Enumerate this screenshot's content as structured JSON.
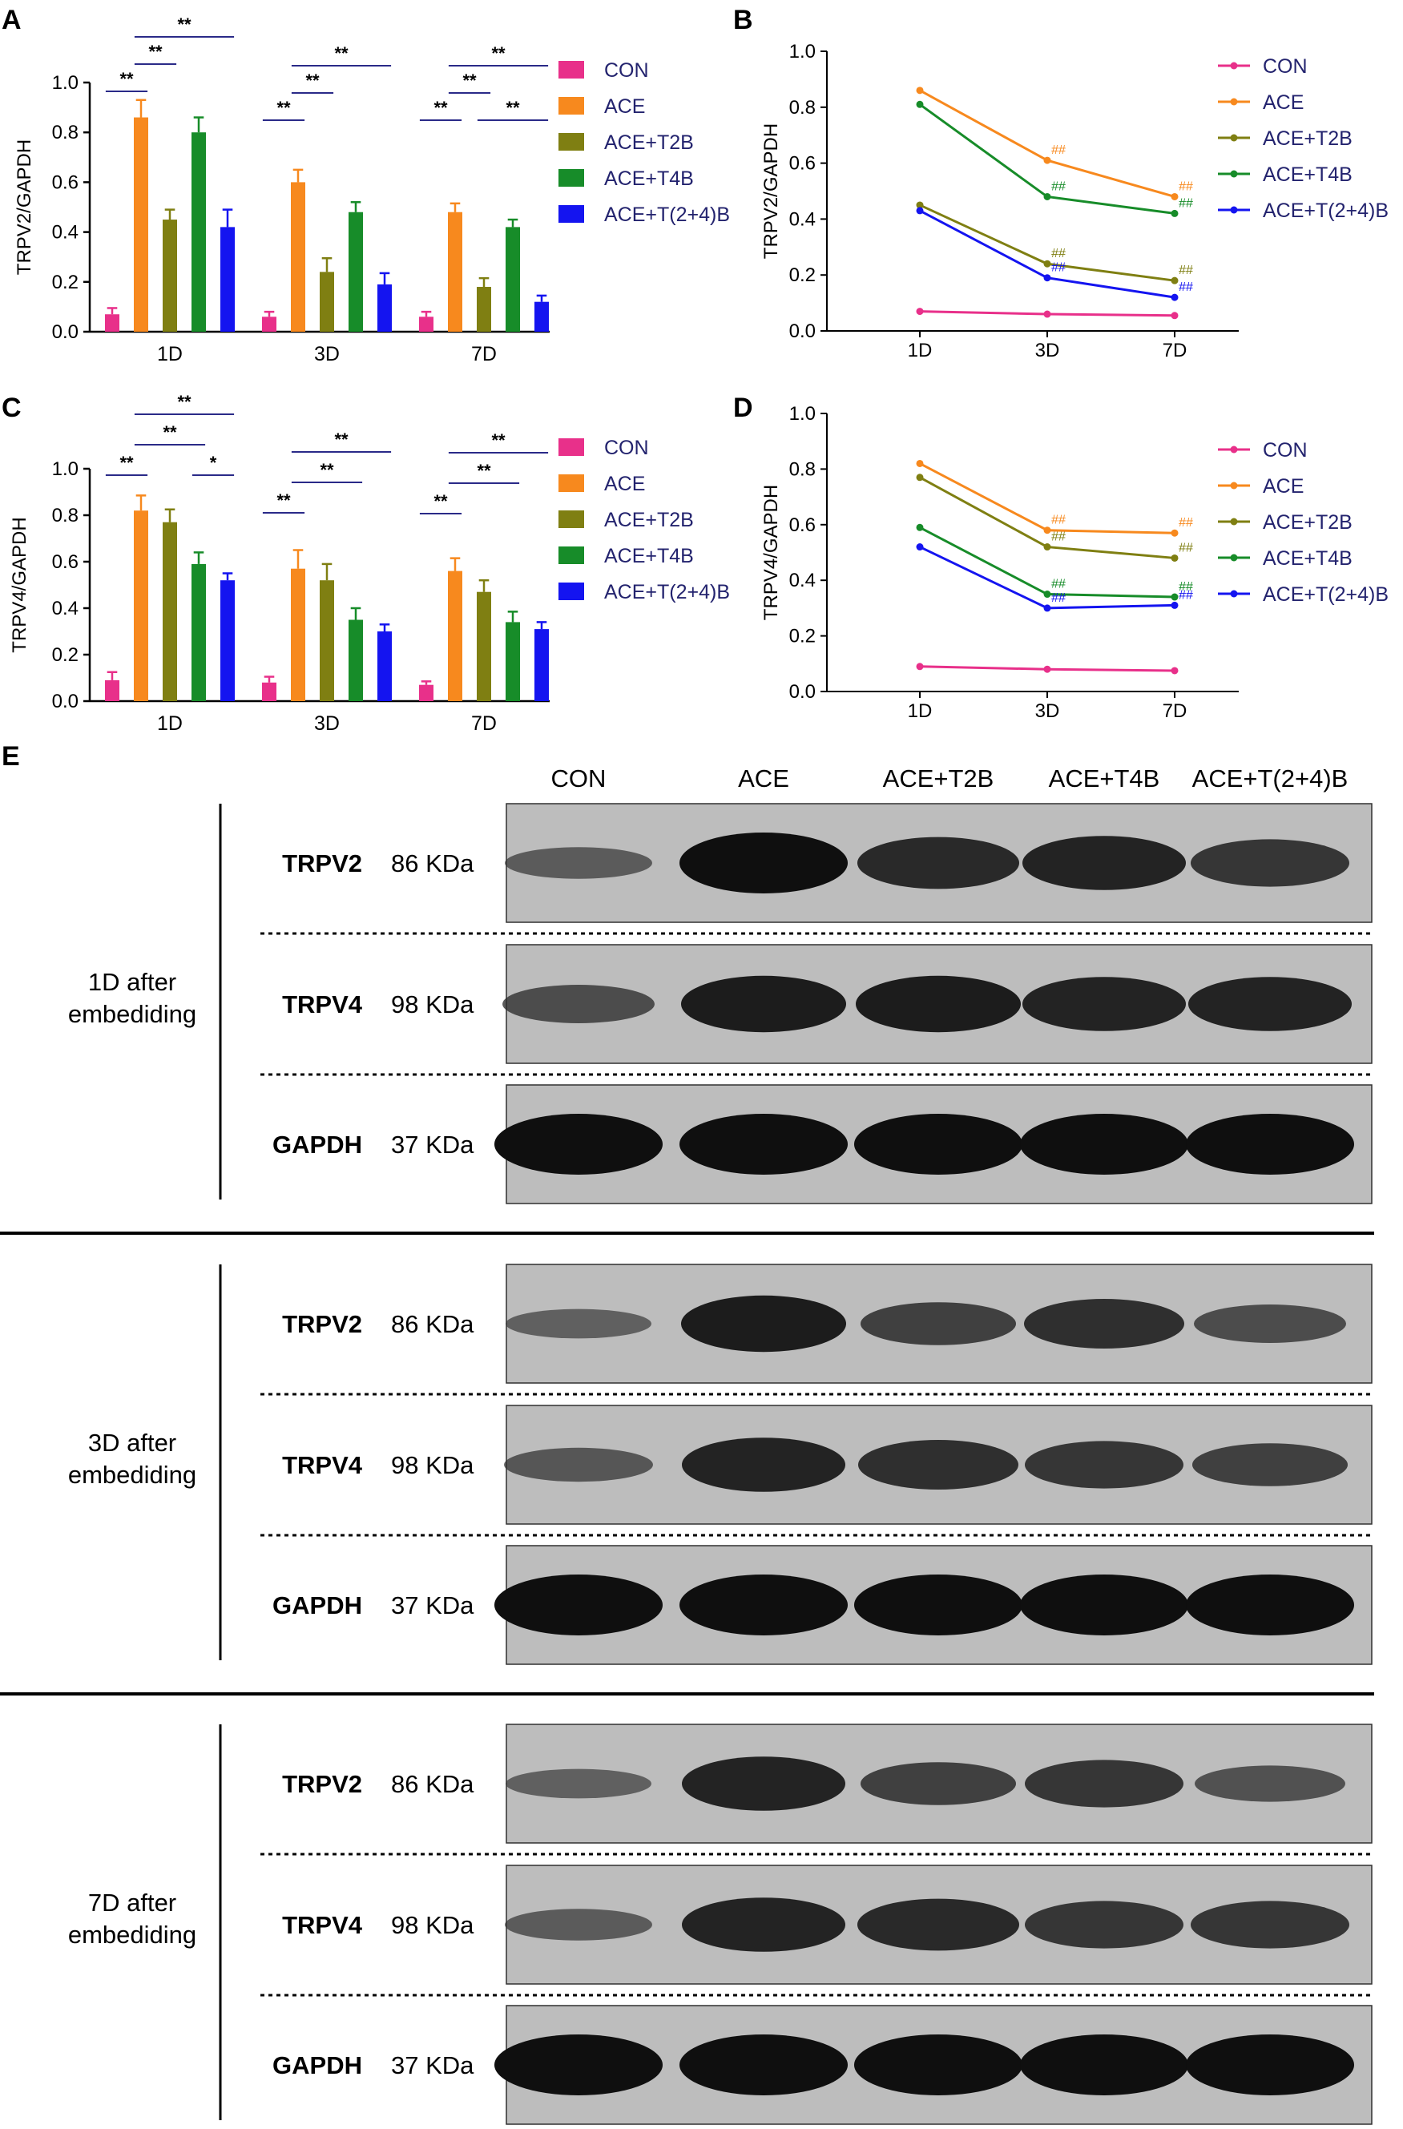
{
  "panel_letters": [
    "A",
    "B",
    "C",
    "D",
    "E"
  ],
  "colors": {
    "CON": "#e8308a",
    "ACE": "#f7891e",
    "ACE+T2B": "#7f7f12",
    "ACE+T4B": "#178c29",
    "ACE+T(2+4)B": "#1414f0",
    "legend_text": "#23236e",
    "sig_line": "#2a2a88",
    "axis": "#000000"
  },
  "chart_data": [
    {
      "panel": "A",
      "type": "bar",
      "ylabel": "TRPV2/GAPDH",
      "ylim": [
        0,
        1.0
      ],
      "yticks": [
        "0.0",
        "0.2",
        "0.4",
        "0.6",
        "0.8",
        "1.0"
      ],
      "categories": [
        "1D",
        "3D",
        "7D"
      ],
      "legend_position": "right",
      "series": [
        {
          "name": "CON",
          "values": [
            0.07,
            0.06,
            0.06
          ],
          "errors": [
            0.025,
            0.02,
            0.02
          ]
        },
        {
          "name": "ACE",
          "values": [
            0.86,
            0.6,
            0.48
          ],
          "errors": [
            0.07,
            0.05,
            0.035
          ]
        },
        {
          "name": "ACE+T2B",
          "values": [
            0.45,
            0.24,
            0.18
          ],
          "errors": [
            0.04,
            0.055,
            0.035
          ]
        },
        {
          "name": "ACE+T4B",
          "values": [
            0.8,
            0.48,
            0.42
          ],
          "errors": [
            0.06,
            0.04,
            0.03
          ]
        },
        {
          "name": "ACE+T(2+4)B",
          "values": [
            0.42,
            0.19,
            0.12
          ],
          "errors": [
            0.07,
            0.045,
            0.025
          ]
        }
      ],
      "significance": [
        {
          "group": 0,
          "from": 0,
          "to": 1,
          "label": "**",
          "level": 0
        },
        {
          "group": 0,
          "from": 1,
          "to": 2,
          "label": "**",
          "level": 1
        },
        {
          "group": 0,
          "from": 1,
          "to": 4,
          "label": "**",
          "level": 2
        },
        {
          "group": 1,
          "from": 0,
          "to": 1,
          "label": "**",
          "level": 0
        },
        {
          "group": 1,
          "from": 1,
          "to": 2,
          "label": "**",
          "level": 1
        },
        {
          "group": 1,
          "from": 1,
          "to": 4,
          "label": "**",
          "level": 2
        },
        {
          "group": 2,
          "from": 0,
          "to": 1,
          "label": "**",
          "level": 0
        },
        {
          "group": 2,
          "from": 1,
          "to": 2,
          "label": "**",
          "level": 1
        },
        {
          "group": 2,
          "from": 2,
          "to": 4,
          "label": "**",
          "level": 0
        },
        {
          "group": 2,
          "from": 1,
          "to": 4,
          "label": "**",
          "level": 2
        }
      ]
    },
    {
      "panel": "B",
      "type": "line",
      "ylabel": "TRPV2/GAPDH",
      "ylim": [
        0,
        1.0
      ],
      "yticks": [
        "0.0",
        "0.2",
        "0.4",
        "0.6",
        "0.8",
        "1.0"
      ],
      "x": [
        "1D",
        "3D",
        "7D"
      ],
      "legend_position": "right",
      "series": [
        {
          "name": "CON",
          "values": [
            0.07,
            0.06,
            0.055
          ],
          "marks": [
            "",
            "",
            ""
          ]
        },
        {
          "name": "ACE",
          "values": [
            0.86,
            0.61,
            0.48
          ],
          "marks": [
            "",
            "##",
            "##"
          ]
        },
        {
          "name": "ACE+T2B",
          "values": [
            0.45,
            0.24,
            0.18
          ],
          "marks": [
            "",
            "##",
            "##"
          ]
        },
        {
          "name": "ACE+T4B",
          "values": [
            0.81,
            0.48,
            0.42
          ],
          "marks": [
            "",
            "##",
            "##"
          ]
        },
        {
          "name": "ACE+T(2+4)B",
          "values": [
            0.43,
            0.19,
            0.12
          ],
          "marks": [
            "",
            "##",
            "##"
          ]
        }
      ]
    },
    {
      "panel": "C",
      "type": "bar",
      "ylabel": "TRPV4/GAPDH",
      "ylim": [
        0,
        1.0
      ],
      "yticks": [
        "0.0",
        "0.2",
        "0.4",
        "0.6",
        "0.8",
        "1.0"
      ],
      "categories": [
        "1D",
        "3D",
        "7D"
      ],
      "legend_position": "right",
      "series": [
        {
          "name": "CON",
          "values": [
            0.09,
            0.08,
            0.07
          ],
          "errors": [
            0.035,
            0.025,
            0.015
          ]
        },
        {
          "name": "ACE",
          "values": [
            0.82,
            0.57,
            0.56
          ],
          "errors": [
            0.065,
            0.08,
            0.055
          ]
        },
        {
          "name": "ACE+T2B",
          "values": [
            0.77,
            0.52,
            0.47
          ],
          "errors": [
            0.055,
            0.07,
            0.05
          ]
        },
        {
          "name": "ACE+T4B",
          "values": [
            0.59,
            0.35,
            0.34
          ],
          "errors": [
            0.05,
            0.05,
            0.045
          ]
        },
        {
          "name": "ACE+T(2+4)B",
          "values": [
            0.52,
            0.3,
            0.31
          ],
          "errors": [
            0.03,
            0.03,
            0.03
          ]
        }
      ],
      "significance": [
        {
          "group": 0,
          "from": 0,
          "to": 1,
          "label": "**",
          "level": 0
        },
        {
          "group": 0,
          "from": 1,
          "to": 3,
          "label": "**",
          "level": 1
        },
        {
          "group": 0,
          "from": 3,
          "to": 4,
          "label": "*",
          "level": 0
        },
        {
          "group": 0,
          "from": 1,
          "to": 4,
          "label": "**",
          "level": 2
        },
        {
          "group": 1,
          "from": 0,
          "to": 1,
          "label": "**",
          "level": 0
        },
        {
          "group": 1,
          "from": 1,
          "to": 3,
          "label": "**",
          "level": 1
        },
        {
          "group": 1,
          "from": 1,
          "to": 4,
          "label": "**",
          "level": 2
        },
        {
          "group": 2,
          "from": 0,
          "to": 1,
          "label": "**",
          "level": 0
        },
        {
          "group": 2,
          "from": 1,
          "to": 3,
          "label": "**",
          "level": 1
        },
        {
          "group": 2,
          "from": 1,
          "to": 4,
          "label": "**",
          "level": 2
        }
      ]
    },
    {
      "panel": "D",
      "type": "line",
      "ylabel": "TRPV4/GAPDH",
      "ylim": [
        0,
        1.0
      ],
      "yticks": [
        "0.0",
        "0.2",
        "0.4",
        "0.6",
        "0.8",
        "1.0"
      ],
      "x": [
        "1D",
        "3D",
        "7D"
      ],
      "legend_position": "right",
      "series": [
        {
          "name": "CON",
          "values": [
            0.09,
            0.08,
            0.075
          ],
          "marks": [
            "",
            "",
            ""
          ]
        },
        {
          "name": "ACE",
          "values": [
            0.82,
            0.58,
            0.57
          ],
          "marks": [
            "",
            "##",
            "##"
          ]
        },
        {
          "name": "ACE+T2B",
          "values": [
            0.77,
            0.52,
            0.48
          ],
          "marks": [
            "",
            "##",
            "##"
          ]
        },
        {
          "name": "ACE+T4B",
          "values": [
            0.59,
            0.35,
            0.34
          ],
          "marks": [
            "",
            "##",
            "##"
          ]
        },
        {
          "name": "ACE+T(2+4)B",
          "values": [
            0.52,
            0.3,
            0.31
          ],
          "marks": [
            "",
            "##",
            "##"
          ]
        }
      ]
    }
  ],
  "western_blot": {
    "lanes": [
      "CON",
      "ACE",
      "ACE+T2B",
      "ACE+T4B",
      "ACE+T(2+4)B"
    ],
    "timepoints": [
      {
        "label_line1": "1D after",
        "label_line2": "embediding",
        "rows": [
          {
            "protein": "TRPV2",
            "size": "86 KDa",
            "intensity": [
              0.35,
              1.0,
              0.8,
              0.85,
              0.7
            ]
          },
          {
            "protein": "TRPV4",
            "size": "98 KDa",
            "intensity": [
              0.5,
              0.9,
              0.9,
              0.85,
              0.85
            ]
          },
          {
            "protein": "GAPDH",
            "size": "37 KDa",
            "intensity": [
              1.0,
              1.0,
              1.0,
              1.0,
              1.0
            ]
          }
        ]
      },
      {
        "label_line1": "3D after",
        "label_line2": "embediding",
        "rows": [
          {
            "protein": "TRPV2",
            "size": "86 KDa",
            "intensity": [
              0.3,
              0.9,
              0.6,
              0.75,
              0.5
            ]
          },
          {
            "protein": "TRPV4",
            "size": "98 KDa",
            "intensity": [
              0.4,
              0.85,
              0.75,
              0.7,
              0.6
            ]
          },
          {
            "protein": "GAPDH",
            "size": "37 KDa",
            "intensity": [
              1.0,
              1.0,
              1.0,
              1.0,
              1.0
            ]
          }
        ]
      },
      {
        "label_line1": "7D after",
        "label_line2": "embediding",
        "rows": [
          {
            "protein": "TRPV2",
            "size": "86 KDa",
            "intensity": [
              0.3,
              0.85,
              0.6,
              0.7,
              0.45
            ]
          },
          {
            "protein": "TRPV4",
            "size": "98 KDa",
            "intensity": [
              0.35,
              0.85,
              0.8,
              0.7,
              0.7
            ]
          },
          {
            "protein": "GAPDH",
            "size": "37 KDa",
            "intensity": [
              1.0,
              1.0,
              1.0,
              1.0,
              1.0
            ]
          }
        ]
      }
    ]
  }
}
